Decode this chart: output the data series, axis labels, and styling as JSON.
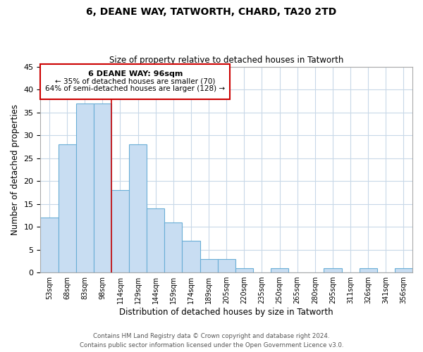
{
  "title": "6, DEANE WAY, TATWORTH, CHARD, TA20 2TD",
  "subtitle": "Size of property relative to detached houses in Tatworth",
  "xlabel": "Distribution of detached houses by size in Tatworth",
  "ylabel": "Number of detached properties",
  "bar_color": "#c8ddf2",
  "bar_edge_color": "#6aaed6",
  "bin_labels": [
    "53sqm",
    "68sqm",
    "83sqm",
    "98sqm",
    "114sqm",
    "129sqm",
    "144sqm",
    "159sqm",
    "174sqm",
    "189sqm",
    "205sqm",
    "220sqm",
    "235sqm",
    "250sqm",
    "265sqm",
    "280sqm",
    "295sqm",
    "311sqm",
    "326sqm",
    "341sqm",
    "356sqm"
  ],
  "bar_heights": [
    12,
    28,
    37,
    37,
    18,
    28,
    14,
    11,
    7,
    3,
    3,
    1,
    0,
    1,
    0,
    0,
    1,
    0,
    1,
    0,
    1
  ],
  "vline_x_index": 3,
  "vline_color": "#cc0000",
  "ylim": [
    0,
    45
  ],
  "yticks": [
    0,
    5,
    10,
    15,
    20,
    25,
    30,
    35,
    40,
    45
  ],
  "annotation_title": "6 DEANE WAY: 96sqm",
  "annotation_line1": "← 35% of detached houses are smaller (70)",
  "annotation_line2": "64% of semi-detached houses are larger (128) →",
  "footer_line1": "Contains HM Land Registry data © Crown copyright and database right 2024.",
  "footer_line2": "Contains public sector information licensed under the Open Government Licence v3.0.",
  "background_color": "#ffffff",
  "grid_color": "#c8d8e8"
}
